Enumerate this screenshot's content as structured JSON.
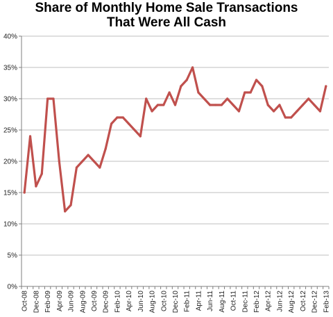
{
  "chart_data": {
    "type": "line",
    "title_line1": "Share of Monthly Home Sale Transactions",
    "title_line2": "That Were All Cash",
    "xlabel": "",
    "ylabel": "",
    "ylim": [
      0,
      40
    ],
    "y_ticks": [
      "0%",
      "5%",
      "10%",
      "15%",
      "20%",
      "25%",
      "30%",
      "35%",
      "40%"
    ],
    "x_tick_labels": [
      "Oct-08",
      "Dec-08",
      "Feb-09",
      "Apr-09",
      "Jun-09",
      "Aug-09",
      "Oct-09",
      "Dec-09",
      "Feb-10",
      "Apr-10",
      "Jun-10",
      "Aug-10",
      "Oct-10",
      "Dec-10",
      "Feb-11",
      "Apr-11",
      "Jun-11",
      "Aug-11",
      "Oct-11",
      "Dec-11",
      "Feb-12",
      "Apr-12",
      "Jun-12",
      "Aug-12",
      "Oct-12",
      "Dec-12",
      "Feb-13"
    ],
    "grid": "horizontal",
    "legend": "none",
    "series": [
      {
        "color": "#C0504D",
        "x": [
          "Oct-08",
          "Nov-08",
          "Dec-08",
          "Jan-09",
          "Feb-09",
          "Mar-09",
          "Apr-09",
          "May-09",
          "Jun-09",
          "Jul-09",
          "Aug-09",
          "Sep-09",
          "Oct-09",
          "Nov-09",
          "Dec-09",
          "Jan-10",
          "Feb-10",
          "Mar-10",
          "Apr-10",
          "May-10",
          "Jun-10",
          "Jul-10",
          "Aug-10",
          "Sep-10",
          "Oct-10",
          "Nov-10",
          "Dec-10",
          "Jan-11",
          "Feb-11",
          "Mar-11",
          "Apr-11",
          "May-11",
          "Jun-11",
          "Jul-11",
          "Aug-11",
          "Sep-11",
          "Oct-11",
          "Nov-11",
          "Dec-11",
          "Jan-12",
          "Feb-12",
          "Mar-12",
          "Apr-12",
          "May-12",
          "Jun-12",
          "Jul-12",
          "Aug-12",
          "Sep-12",
          "Oct-12",
          "Nov-12",
          "Dec-12",
          "Jan-13",
          "Feb-13"
        ],
        "values": [
          15,
          24,
          16,
          18,
          30,
          30,
          20,
          12,
          13,
          19,
          20,
          21,
          20,
          19,
          22,
          26,
          27,
          27,
          26,
          25,
          24,
          30,
          28,
          29,
          29,
          31,
          29,
          32,
          33,
          35,
          31,
          30,
          29,
          29,
          29,
          30,
          29,
          28,
          31,
          31,
          33,
          32,
          29,
          28,
          29,
          27,
          27,
          28,
          29,
          30,
          29,
          28,
          32
        ]
      }
    ]
  }
}
